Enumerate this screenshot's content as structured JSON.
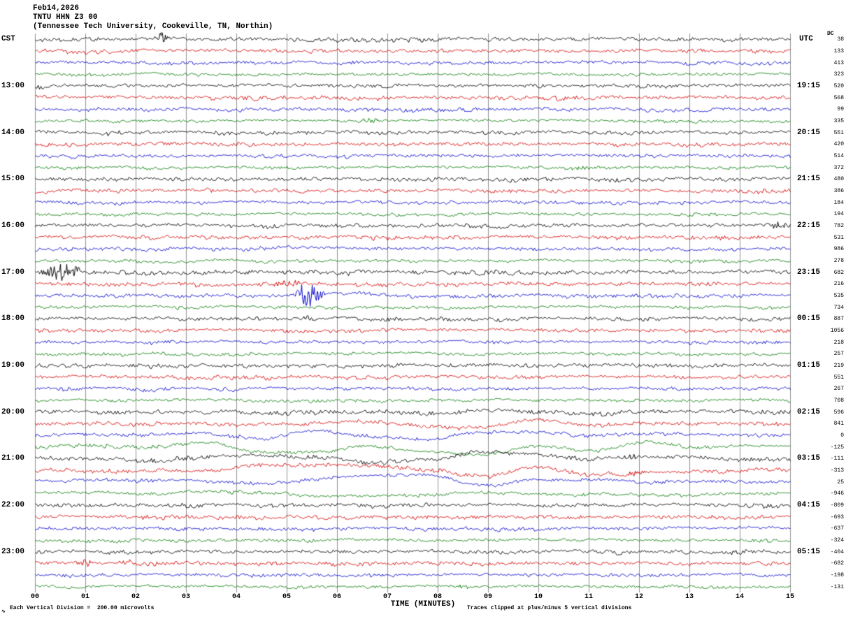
{
  "header": {
    "date": "Feb14,2026",
    "station": "TNTU HHN Z3 00",
    "location": "(Tennessee Tech University, Cookeville, TN, Northin)",
    "left_tz": "CST",
    "right_tz": "UTC",
    "dc_header": "DC"
  },
  "x_axis": {
    "title": "TIME (MINUTES)",
    "ticks": [
      "00",
      "01",
      "02",
      "03",
      "04",
      "05",
      "06",
      "07",
      "08",
      "09",
      "10",
      "11",
      "12",
      "13",
      "14",
      "15"
    ]
  },
  "footer": {
    "scale_note": "Each Vertical Division =  200.00 microvolts",
    "clip_note": "Traces clipped at plus/minus 5 vertical divisions"
  },
  "icons": {
    "corner_mark": "∿"
  },
  "chart_data": {
    "type": "line",
    "subtype": "helicorder-seismogram",
    "title": "TNTU HHN Z3 00 helicorder record Feb14,2026",
    "x_unit": "minutes",
    "x_range": [
      0,
      15
    ],
    "minutes_per_line": 15,
    "lines_per_hour": 4,
    "clip_divisions": 5,
    "noise_seed": 20260214,
    "grid_color": "#909090",
    "colors": {
      "black": "#000000",
      "red": "#d40000",
      "blue": "#0000cc",
      "green": "#007a00"
    },
    "traces": [
      {
        "cst": "",
        "utc": "",
        "dc": 38,
        "color": "black",
        "amp": 1.1
      },
      {
        "cst": "",
        "utc": "",
        "dc": 133,
        "color": "red",
        "amp": 1.0
      },
      {
        "cst": "",
        "utc": "",
        "dc": 413,
        "color": "blue",
        "amp": 0.9
      },
      {
        "cst": "",
        "utc": "",
        "dc": 323,
        "color": "green",
        "amp": 0.75
      },
      {
        "cst": "13:00",
        "utc": "19:15",
        "dc": 520,
        "color": "black",
        "amp": 1.0
      },
      {
        "cst": "",
        "utc": "",
        "dc": 568,
        "color": "red",
        "amp": 1.0
      },
      {
        "cst": "",
        "utc": "",
        "dc": 99,
        "color": "blue",
        "amp": 0.9
      },
      {
        "cst": "",
        "utc": "",
        "dc": 335,
        "color": "green",
        "amp": 0.8
      },
      {
        "cst": "14:00",
        "utc": "20:15",
        "dc": 551,
        "color": "black",
        "amp": 1.0
      },
      {
        "cst": "",
        "utc": "",
        "dc": 420,
        "color": "red",
        "amp": 1.05
      },
      {
        "cst": "",
        "utc": "",
        "dc": 514,
        "color": "blue",
        "amp": 0.9
      },
      {
        "cst": "",
        "utc": "",
        "dc": 372,
        "color": "green",
        "amp": 0.8
      },
      {
        "cst": "15:00",
        "utc": "21:15",
        "dc": 480,
        "color": "black",
        "amp": 1.0
      },
      {
        "cst": "",
        "utc": "",
        "dc": 386,
        "color": "red",
        "amp": 1.0
      },
      {
        "cst": "",
        "utc": "",
        "dc": 184,
        "color": "blue",
        "amp": 0.9
      },
      {
        "cst": "",
        "utc": "",
        "dc": 194,
        "color": "green",
        "amp": 0.75
      },
      {
        "cst": "16:00",
        "utc": "22:15",
        "dc": 782,
        "color": "black",
        "amp": 1.05
      },
      {
        "cst": "",
        "utc": "",
        "dc": 531,
        "color": "red",
        "amp": 1.0
      },
      {
        "cst": "",
        "utc": "",
        "dc": 986,
        "color": "blue",
        "amp": 0.95
      },
      {
        "cst": "",
        "utc": "",
        "dc": 278,
        "color": "green",
        "amp": 0.8
      },
      {
        "cst": "17:00",
        "utc": "23:15",
        "dc": 682,
        "color": "black",
        "amp": 1.15
      },
      {
        "cst": "",
        "utc": "",
        "dc": 216,
        "color": "red",
        "amp": 1.05
      },
      {
        "cst": "",
        "utc": "",
        "dc": 535,
        "color": "blue",
        "amp": 0.95
      },
      {
        "cst": "",
        "utc": "",
        "dc": 734,
        "color": "green",
        "amp": 0.8
      },
      {
        "cst": "18:00",
        "utc": "00:15",
        "dc": 887,
        "color": "black",
        "amp": 1.0
      },
      {
        "cst": "",
        "utc": "",
        "dc": 1056,
        "color": "red",
        "amp": 1.0
      },
      {
        "cst": "",
        "utc": "",
        "dc": 218,
        "color": "blue",
        "amp": 0.9
      },
      {
        "cst": "",
        "utc": "",
        "dc": 257,
        "color": "green",
        "amp": 0.8
      },
      {
        "cst": "19:00",
        "utc": "01:15",
        "dc": 219,
        "color": "black",
        "amp": 1.0
      },
      {
        "cst": "",
        "utc": "",
        "dc": 551,
        "color": "red",
        "amp": 1.0
      },
      {
        "cst": "",
        "utc": "",
        "dc": 267,
        "color": "blue",
        "amp": 0.9
      },
      {
        "cst": "",
        "utc": "",
        "dc": 708,
        "color": "green",
        "amp": 0.8
      },
      {
        "cst": "20:00",
        "utc": "02:15",
        "dc": 596,
        "color": "black",
        "amp": 1.1
      },
      {
        "cst": "",
        "utc": "",
        "dc": 841,
        "color": "red",
        "amp": 1.15
      },
      {
        "cst": "",
        "utc": "",
        "dc": 0,
        "color": "blue",
        "amp": 1.0
      },
      {
        "cst": "",
        "utc": "",
        "dc": -125,
        "color": "green",
        "amp": 1.0
      },
      {
        "cst": "21:00",
        "utc": "03:15",
        "dc": -111,
        "color": "black",
        "amp": 1.2
      },
      {
        "cst": "",
        "utc": "",
        "dc": -313,
        "color": "red",
        "amp": 1.1
      },
      {
        "cst": "",
        "utc": "",
        "dc": 25,
        "color": "blue",
        "amp": 1.0
      },
      {
        "cst": "",
        "utc": "",
        "dc": -946,
        "color": "green",
        "amp": 0.9
      },
      {
        "cst": "22:00",
        "utc": "04:15",
        "dc": -809,
        "color": "black",
        "amp": 1.0
      },
      {
        "cst": "",
        "utc": "",
        "dc": -693,
        "color": "red",
        "amp": 1.0
      },
      {
        "cst": "",
        "utc": "",
        "dc": -637,
        "color": "blue",
        "amp": 0.9
      },
      {
        "cst": "",
        "utc": "",
        "dc": -324,
        "color": "green",
        "amp": 0.8
      },
      {
        "cst": "23:00",
        "utc": "05:15",
        "dc": -404,
        "color": "black",
        "amp": 1.0
      },
      {
        "cst": "",
        "utc": "",
        "dc": -682,
        "color": "red",
        "amp": 1.05
      },
      {
        "cst": "",
        "utc": "",
        "dc": -198,
        "color": "blue",
        "amp": 0.9
      },
      {
        "cst": "",
        "utc": "",
        "dc": -131,
        "color": "green",
        "amp": 0.8
      }
    ],
    "events": [
      {
        "trace": 0,
        "start": 2.35,
        "end": 2.65,
        "amp": 5,
        "mode": "burst"
      },
      {
        "trace": 7,
        "start": 6.3,
        "end": 6.9,
        "amp": 2.6,
        "mode": "burst"
      },
      {
        "trace": 11,
        "start": 10.5,
        "end": 11.1,
        "amp": 2.6,
        "mode": "burst"
      },
      {
        "trace": 13,
        "start": 3.3,
        "end": 3.7,
        "amp": 2.3,
        "mode": "burst"
      },
      {
        "trace": 16,
        "start": 14.5,
        "end": 15,
        "amp": 3.5,
        "mode": "burst"
      },
      {
        "trace": 18,
        "start": 4.3,
        "end": 6.2,
        "amp": 5,
        "mode": "slow"
      },
      {
        "trace": 20,
        "start": 0.05,
        "end": 1.0,
        "amp": 7,
        "mode": "burst"
      },
      {
        "trace": 21,
        "start": 4.6,
        "end": 5.4,
        "amp": 3.5,
        "mode": "burst"
      },
      {
        "trace": 22,
        "start": 5.1,
        "end": 5.8,
        "amp": 10,
        "mode": "burst"
      },
      {
        "trace": 22,
        "start": 5.0,
        "end": 7.2,
        "amp": 4,
        "mode": "slow"
      },
      {
        "trace": 24,
        "start": 5.3,
        "end": 5.6,
        "amp": 3,
        "mode": "burst"
      },
      {
        "trace": 32,
        "start": 6,
        "end": 13,
        "amp": 4,
        "mode": "slow"
      },
      {
        "trace": 33,
        "start": 5,
        "end": 12.5,
        "amp": 6,
        "mode": "slow"
      },
      {
        "trace": 34,
        "start": 0,
        "end": 15,
        "amp": 7,
        "mode": "slow"
      },
      {
        "trace": 35,
        "start": 0,
        "end": 15,
        "amp": 13,
        "mode": "slow"
      },
      {
        "trace": 36,
        "start": 0,
        "end": 15,
        "amp": 13,
        "mode": "slow"
      },
      {
        "trace": 36,
        "start": 11.6,
        "end": 12.1,
        "amp": 3,
        "mode": "burst"
      },
      {
        "trace": 37,
        "start": 0,
        "end": 15,
        "amp": 9,
        "mode": "slow"
      },
      {
        "trace": 37,
        "start": 11.7,
        "end": 12.2,
        "amp": 3,
        "mode": "burst"
      },
      {
        "trace": 38,
        "start": 0,
        "end": 13,
        "amp": 11,
        "mode": "slow"
      },
      {
        "trace": 39,
        "start": 0,
        "end": 15,
        "amp": 5,
        "mode": "slow"
      },
      {
        "trace": 45,
        "start": 0.75,
        "end": 1.15,
        "amp": 4,
        "mode": "burst"
      },
      {
        "trace": 45,
        "start": 1.6,
        "end": 2.0,
        "amp": 3,
        "mode": "burst"
      },
      {
        "trace": 46,
        "start": 6.6,
        "end": 7.0,
        "amp": 2.5,
        "mode": "burst"
      },
      {
        "trace": 47,
        "start": 8.2,
        "end": 8.7,
        "amp": 3,
        "mode": "burst"
      }
    ]
  }
}
